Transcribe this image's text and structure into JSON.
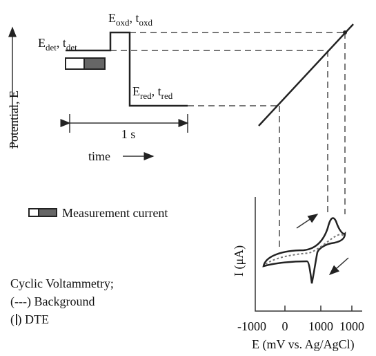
{
  "y_axis_label": "Potential, E",
  "waveform": {
    "det": [
      "E",
      "det",
      ", t",
      "det"
    ],
    "oxd": [
      "E",
      "oxd",
      ", t",
      "oxd"
    ],
    "red": [
      "E",
      "red",
      ", t",
      "red"
    ],
    "period": "1 s",
    "time_label": "time"
  },
  "legend": "Measurement current",
  "notes": [
    "Cyclic Voltammetry;",
    "(---) Background",
    "( ) DTE"
  ],
  "cv": {
    "y_label": "I (μA)",
    "x_ticks": [
      "-1000",
      "0",
      "1000",
      "1000"
    ],
    "x_label": "E (mV vs. Ag/AgCl)"
  }
}
